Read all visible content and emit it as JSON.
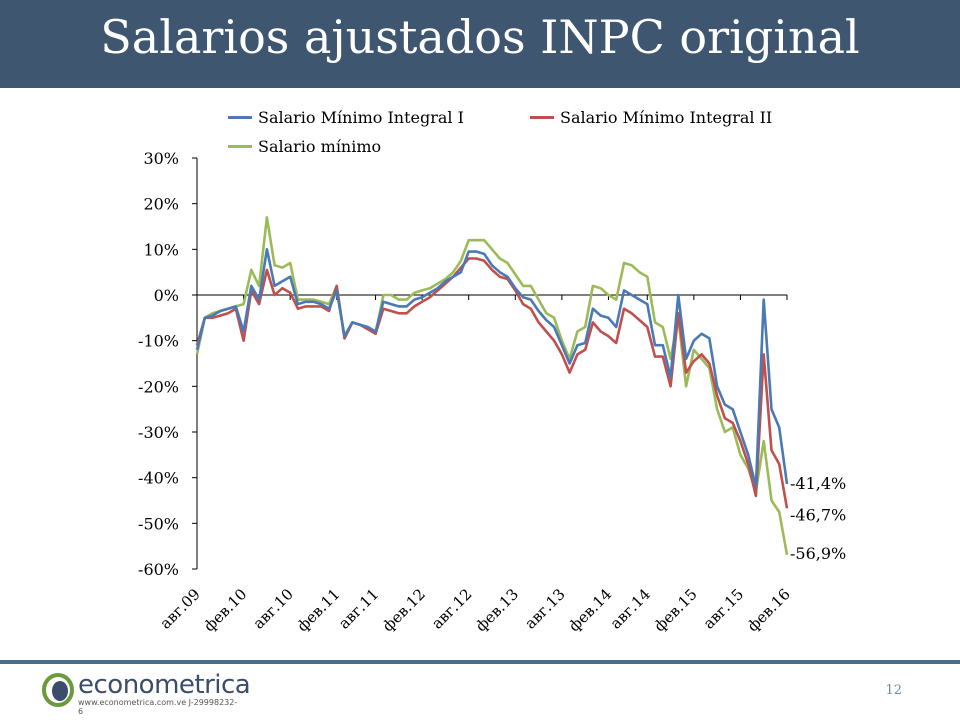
{
  "slide": {
    "title": "Salarios ajustados INPC original",
    "page_number": "12"
  },
  "logo": {
    "word": "econometrica",
    "sub": "www.econometrica.com.ve   J-29998232-6"
  },
  "colors": {
    "header": "#3f5670",
    "series1": "#4a7ab5",
    "series2": "#c0504d",
    "series3": "#9bbb59",
    "footer_line": "#4a6b8a"
  },
  "chart_data": {
    "type": "line",
    "title": "",
    "xlabel": "",
    "ylabel": "",
    "ylim": [
      -60,
      30
    ],
    "yticks": [
      "30%",
      "20%",
      "10%",
      "0%",
      "-10%",
      "-20%",
      "-30%",
      "-40%",
      "-50%",
      "-60%"
    ],
    "ytick_values": [
      30,
      20,
      10,
      0,
      -10,
      -20,
      -30,
      -40,
      -50,
      -60
    ],
    "xticks": [
      "авг.09",
      "фев.10",
      "авг.10",
      "фев.11",
      "авг.11",
      "фев.12",
      "авг.12",
      "фев.13",
      "авг.13",
      "фев.14",
      "авг.14",
      "фев.15",
      "авг.15",
      "фев.16"
    ],
    "x_start": "авг.09",
    "legend_position": "top",
    "series": [
      {
        "name": "Salario Mínimo Integral I",
        "end_label": "-41,4%",
        "values": [
          -12,
          -5,
          -4.5,
          -3.5,
          -3,
          -2.5,
          -8,
          2,
          -1,
          10,
          2,
          3,
          4,
          -2,
          -1.5,
          -1.5,
          -2,
          -3,
          1,
          -9,
          -6,
          -6.5,
          -7,
          -8,
          -1.5,
          -2,
          -2.5,
          -2.5,
          -1,
          -0.5,
          0.5,
          1.5,
          3,
          4,
          5,
          9.5,
          9.5,
          9,
          6.5,
          5,
          4,
          1.5,
          -0.5,
          -1,
          -3.5,
          -5.5,
          -7,
          -11,
          -15,
          -11,
          -10.5,
          -3,
          -4.5,
          -5,
          -7,
          1,
          0,
          -1,
          -2,
          -11,
          -11,
          -18,
          0,
          -14,
          -10,
          -8.5,
          -9.5,
          -20,
          -24,
          -25,
          -30,
          -35,
          -42,
          -1,
          -25,
          -29,
          -41.4
        ]
      },
      {
        "name": "Salario Mínimo Integral II",
        "end_label": "-46,7%",
        "values": [
          -11,
          -5,
          -5,
          -4.5,
          -4,
          -3,
          -10,
          1,
          -2,
          5.5,
          0,
          1.5,
          0.5,
          -3,
          -2.5,
          -2.5,
          -2.5,
          -3.5,
          2,
          -9.5,
          -6,
          -6.5,
          -7.5,
          -8.5,
          -3,
          -3.5,
          -4,
          -4,
          -2.5,
          -1.5,
          -0.5,
          1,
          2.5,
          4,
          6,
          8,
          8,
          7.5,
          5.5,
          4,
          3.5,
          1,
          -2,
          -3,
          -6,
          -8,
          -10,
          -13,
          -17,
          -13,
          -12,
          -6,
          -8,
          -9,
          -10.5,
          -3,
          -4,
          -5.5,
          -7,
          -13.5,
          -13.5,
          -20,
          -4,
          -17,
          -14.5,
          -13,
          -15,
          -22,
          -27,
          -28,
          -32,
          -37,
          -44,
          -13,
          -34,
          -37,
          -46.7
        ]
      },
      {
        "name": "Salario mínimo",
        "end_label": "-56,9%",
        "values": [
          -13,
          -5,
          -4,
          -3.5,
          -3,
          -2.5,
          -2,
          5.5,
          2,
          17,
          6.5,
          6,
          7,
          -1,
          -1,
          -1,
          -1.5,
          -2,
          2,
          -9.5,
          -6,
          -6.5,
          -7,
          -8.5,
          0,
          0,
          -1,
          -1,
          0.5,
          1,
          1.5,
          2.5,
          3.5,
          5,
          7.5,
          12,
          12,
          12,
          10,
          8,
          7,
          4.5,
          2,
          2,
          -1,
          -4,
          -5,
          -10,
          -14,
          -8,
          -7,
          2,
          1.5,
          0,
          -1,
          7,
          6.5,
          5,
          4,
          -6,
          -7,
          -14,
          -5,
          -20,
          -12,
          -14,
          -16,
          -25,
          -30,
          -29,
          -35,
          -38,
          -43,
          -32,
          -45,
          -47.5,
          -56.9
        ]
      }
    ]
  }
}
